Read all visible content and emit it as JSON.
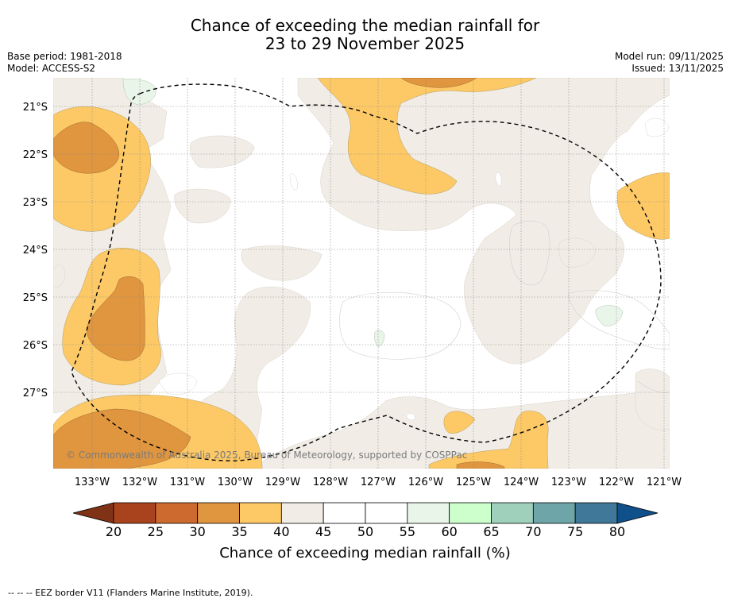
{
  "title": {
    "line1": "Chance of exceeding the median rainfall for",
    "line2": "23 to 29 November 2025"
  },
  "meta": {
    "base_period": "Base period: 1981-2018",
    "model": "Model: ACCESS-S2",
    "model_run": "Model run: 09/11/2025",
    "issued": "Issued: 13/11/2025"
  },
  "map": {
    "copyright": "© Commonwealth of Australia 2025, Bureau of Meteorology, supported by COSPPac",
    "lat_labels": [
      "21°S",
      "22°S",
      "23°S",
      "24°S",
      "25°S",
      "26°S",
      "27°S"
    ],
    "lon_labels": [
      "133°W",
      "132°W",
      "131°W",
      "130°W",
      "129°W",
      "128°W",
      "127°W",
      "126°W",
      "125°W",
      "124°W",
      "123°W",
      "122°W",
      "121°W"
    ]
  },
  "colorbar": {
    "ticks": [
      "20",
      "25",
      "30",
      "35",
      "40",
      "45",
      "50",
      "55",
      "60",
      "65",
      "70",
      "75",
      "80"
    ],
    "colors": [
      "#a9431e",
      "#cd6a30",
      "#e0953f",
      "#fdc966",
      "#f1ede6",
      "#ffffff",
      "#ffffff",
      "#eaf5e9",
      "#ccffcc",
      "#9ed0bb",
      "#6ea5a8",
      "#3f7898"
    ],
    "under_color": "#7f3216",
    "over_color": "#10508a",
    "label": "Chance of exceeding median rainfall (%)"
  },
  "footnote": "--  --  -- EEZ border V11 (Flanders Marine Institute, 2019)."
}
